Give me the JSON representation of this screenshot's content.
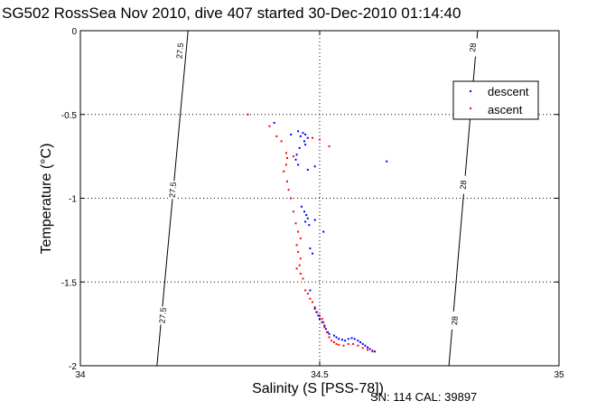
{
  "chart_data": {
    "type": "scatter",
    "title": "SG502 RossSea Nov 2010, dive 407 started 30-Dec-2010 01:14:40",
    "xlabel": "Salinity (S [PSS-78])",
    "ylabel": "Temperature (°C)",
    "xlim": [
      34,
      35
    ],
    "ylim": [
      -2,
      0
    ],
    "xticks": [
      "34",
      "34.5",
      "35"
    ],
    "yticks": [
      "0",
      "-0.5",
      "-1",
      "-1.5",
      "-2"
    ],
    "grid": true,
    "legend_position": "top-right",
    "footer": "SN: 114  CAL: 39897",
    "colors": {
      "descent": "#0000ff",
      "ascent": "#ff0000",
      "contour": "#000000"
    },
    "contours": [
      {
        "label": "27.5",
        "points": [
          [
            34.225,
            0.0
          ],
          [
            34.16,
            -2.0
          ]
        ],
        "label_positions": [
          [
            34.208,
            -0.12
          ],
          [
            34.193,
            -0.95
          ],
          [
            34.172,
            -1.7
          ]
        ]
      },
      {
        "label": "28",
        "points": [
          [
            34.83,
            0.0
          ],
          [
            34.77,
            -2.0
          ]
        ],
        "label_positions": [
          [
            34.82,
            -0.1
          ],
          [
            34.8,
            -0.92
          ],
          [
            34.782,
            -1.73
          ]
        ]
      }
    ],
    "series": [
      {
        "name": "descent",
        "points": [
          [
            34.44,
            -0.62
          ],
          [
            34.455,
            -0.6
          ],
          [
            34.46,
            -0.63
          ],
          [
            34.465,
            -0.61
          ],
          [
            34.47,
            -0.62
          ],
          [
            34.475,
            -0.64
          ],
          [
            34.468,
            -0.66
          ],
          [
            34.47,
            -0.68
          ],
          [
            34.458,
            -0.7
          ],
          [
            34.452,
            -0.74
          ],
          [
            34.45,
            -0.77
          ],
          [
            34.455,
            -0.8
          ],
          [
            34.475,
            -0.83
          ],
          [
            34.405,
            -0.55
          ],
          [
            34.64,
            -0.78
          ],
          [
            34.49,
            -0.81
          ],
          [
            34.462,
            -1.05
          ],
          [
            34.468,
            -1.08
          ],
          [
            34.472,
            -1.1
          ],
          [
            34.475,
            -1.12
          ],
          [
            34.47,
            -1.14
          ],
          [
            34.478,
            -1.16
          ],
          [
            34.49,
            -1.13
          ],
          [
            34.508,
            -1.2
          ],
          [
            34.48,
            -1.3
          ],
          [
            34.485,
            -1.33
          ],
          [
            34.48,
            -1.55
          ],
          [
            34.485,
            -1.62
          ],
          [
            34.49,
            -1.66
          ],
          [
            34.493,
            -1.68
          ],
          [
            34.497,
            -1.7
          ],
          [
            34.5,
            -1.72
          ],
          [
            34.505,
            -1.74
          ],
          [
            34.51,
            -1.76
          ],
          [
            34.513,
            -1.78
          ],
          [
            34.517,
            -1.8
          ],
          [
            34.52,
            -1.81
          ],
          [
            34.53,
            -1.82
          ],
          [
            34.535,
            -1.83
          ],
          [
            34.54,
            -1.84
          ],
          [
            34.547,
            -1.845
          ],
          [
            34.553,
            -1.85
          ],
          [
            34.56,
            -1.84
          ],
          [
            34.567,
            -1.835
          ],
          [
            34.573,
            -1.84
          ],
          [
            34.58,
            -1.85
          ],
          [
            34.585,
            -1.86
          ],
          [
            34.59,
            -1.87
          ],
          [
            34.595,
            -1.88
          ],
          [
            34.6,
            -1.89
          ],
          [
            34.605,
            -1.9
          ],
          [
            34.61,
            -1.91
          ],
          [
            34.615,
            -1.915
          ]
        ]
      },
      {
        "name": "ascent",
        "points": [
          [
            34.35,
            -0.5
          ],
          [
            34.395,
            -0.57
          ],
          [
            34.41,
            -0.63
          ],
          [
            34.42,
            -0.66
          ],
          [
            34.43,
            -0.73
          ],
          [
            34.432,
            -0.76
          ],
          [
            34.43,
            -0.8
          ],
          [
            34.425,
            -0.84
          ],
          [
            34.445,
            -0.75
          ],
          [
            34.485,
            -0.64
          ],
          [
            34.5,
            -0.65
          ],
          [
            34.52,
            -0.69
          ],
          [
            34.432,
            -0.9
          ],
          [
            34.435,
            -0.95
          ],
          [
            34.44,
            -1.0
          ],
          [
            34.445,
            -1.08
          ],
          [
            34.45,
            -1.15
          ],
          [
            34.455,
            -1.2
          ],
          [
            34.46,
            -1.24
          ],
          [
            34.452,
            -1.28
          ],
          [
            34.455,
            -1.32
          ],
          [
            34.46,
            -1.36
          ],
          [
            34.458,
            -1.4
          ],
          [
            34.452,
            -1.42
          ],
          [
            34.46,
            -1.45
          ],
          [
            34.465,
            -1.48
          ],
          [
            34.47,
            -1.55
          ],
          [
            34.475,
            -1.57
          ],
          [
            34.48,
            -1.6
          ],
          [
            34.485,
            -1.62
          ],
          [
            34.49,
            -1.65
          ],
          [
            34.495,
            -1.68
          ],
          [
            34.5,
            -1.7
          ],
          [
            34.505,
            -1.72
          ],
          [
            34.508,
            -1.74
          ],
          [
            34.51,
            -1.77
          ],
          [
            34.515,
            -1.8
          ],
          [
            34.52,
            -1.83
          ],
          [
            34.525,
            -1.85
          ],
          [
            34.53,
            -1.86
          ],
          [
            34.535,
            -1.87
          ],
          [
            34.54,
            -1.875
          ],
          [
            34.55,
            -1.88
          ],
          [
            34.56,
            -1.87
          ],
          [
            34.57,
            -1.87
          ],
          [
            34.58,
            -1.88
          ],
          [
            34.59,
            -1.895
          ],
          [
            34.6,
            -1.905
          ],
          [
            34.61,
            -1.915
          ]
        ]
      }
    ]
  }
}
